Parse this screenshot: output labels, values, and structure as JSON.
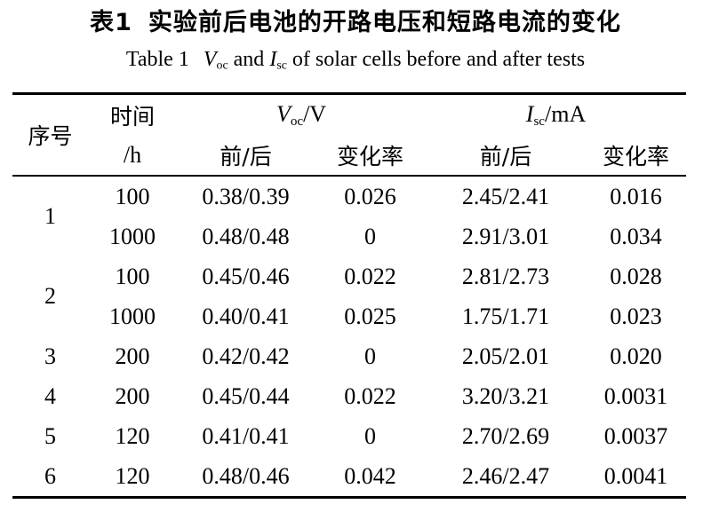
{
  "title": {
    "label_cn": "表1",
    "text_cn": "实验前后电池的开路电压和短路电流的变化"
  },
  "caption": {
    "label": "Table 1",
    "voc_symbol": "V",
    "voc_sub": "oc",
    "mid_text": " and ",
    "isc_symbol": "I",
    "isc_sub": "sc",
    "tail_text": " of solar cells before and after tests"
  },
  "table": {
    "headers": {
      "seq": "序号",
      "time_line1": "时间",
      "time_line2": "/h",
      "voc_symbol": "V",
      "voc_sub": "oc",
      "voc_unit": "/V",
      "isc_symbol": "I",
      "isc_sub": "sc",
      "isc_unit": "/mA",
      "voc_before_after": "前/后",
      "voc_change_rate": "变化率",
      "isc_before_after": "前/后",
      "isc_change_rate": "变化率"
    },
    "rows": [
      {
        "seq": "1",
        "time": "100",
        "voc": "0.38/0.39",
        "voc_rate": "0.026",
        "isc": "2.45/2.41",
        "isc_rate": "0.016"
      },
      {
        "time": "1000",
        "voc": "0.48/0.48",
        "voc_rate": "0",
        "isc": "2.91/3.01",
        "isc_rate": "0.034"
      },
      {
        "seq": "2",
        "time": "100",
        "voc": "0.45/0.46",
        "voc_rate": "0.022",
        "isc": "2.81/2.73",
        "isc_rate": "0.028"
      },
      {
        "time": "1000",
        "voc": "0.40/0.41",
        "voc_rate": "0.025",
        "isc": "1.75/1.71",
        "isc_rate": "0.023"
      },
      {
        "seq": "3",
        "time": "200",
        "voc": "0.42/0.42",
        "voc_rate": "0",
        "isc": "2.05/2.01",
        "isc_rate": "0.020"
      },
      {
        "seq": "4",
        "time": "200",
        "voc": "0.45/0.44",
        "voc_rate": "0.022",
        "isc": "3.20/3.21",
        "isc_rate": "0.0031"
      },
      {
        "seq": "5",
        "time": "120",
        "voc": "0.41/0.41",
        "voc_rate": "0",
        "isc": "2.70/2.69",
        "isc_rate": "0.0037"
      },
      {
        "seq": "6",
        "time": "120",
        "voc": "0.48/0.46",
        "voc_rate": "0.042",
        "isc": "2.46/2.47",
        "isc_rate": "0.0041"
      }
    ]
  },
  "colors": {
    "text": "#000000",
    "background": "#ffffff"
  }
}
